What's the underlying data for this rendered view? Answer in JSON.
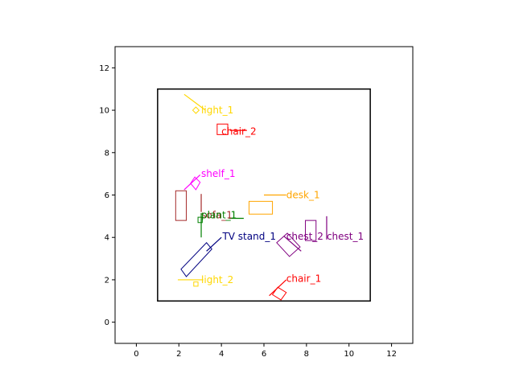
{
  "chart_data": {
    "type": "scatter",
    "title": "",
    "xlabel": "",
    "ylabel": "",
    "xlim": [
      -1,
      13
    ],
    "ylim": [
      -1,
      13
    ],
    "x_ticks": [
      0,
      2,
      4,
      6,
      8,
      10,
      12
    ],
    "y_ticks": [
      0,
      2,
      4,
      6,
      8,
      10,
      12
    ],
    "x_tick_labels": [
      "0",
      "2",
      "4",
      "6",
      "8",
      "10",
      "12"
    ],
    "y_tick_labels": [
      "0",
      "2",
      "4",
      "6",
      "8",
      "10",
      "12"
    ],
    "grid": false,
    "room": {
      "x": [
        1,
        11
      ],
      "y": [
        1,
        11
      ],
      "color": "#000000"
    },
    "objects": [
      {
        "name": "light_1",
        "color": "#FFD700",
        "box": [
          [
            2.65,
            10.0
          ],
          [
            2.8,
            9.85
          ],
          [
            2.95,
            10.0
          ],
          [
            2.8,
            10.15
          ]
        ],
        "dir": [
          [
            3.25,
            10.0
          ],
          [
            2.25,
            10.75
          ]
        ],
        "label_at": [
          3.05,
          10.0
        ]
      },
      {
        "name": "chair_2",
        "color": "#FF0000",
        "box": [
          [
            3.8,
            8.85
          ],
          [
            4.3,
            8.85
          ],
          [
            4.3,
            9.35
          ],
          [
            3.8,
            9.35
          ]
        ],
        "dir": [
          [
            4.4,
            9.05
          ],
          [
            5.2,
            9.05
          ]
        ],
        "label_at": [
          4.0,
          9.0
        ]
      },
      {
        "name": "shelf_1",
        "color": "#FF00FF",
        "box": [
          [
            2.55,
            6.55
          ],
          [
            2.8,
            6.25
          ],
          [
            3.0,
            6.6
          ],
          [
            2.75,
            6.85
          ]
        ],
        "dir": [
          [
            2.25,
            6.25
          ],
          [
            3.0,
            6.95
          ]
        ],
        "label_at": [
          3.05,
          7.0
        ]
      },
      {
        "name": "desk_1",
        "color": "#FFA500",
        "box": [
          [
            5.3,
            5.1
          ],
          [
            6.4,
            5.1
          ],
          [
            6.4,
            5.7
          ],
          [
            5.3,
            5.7
          ]
        ],
        "dir": [
          [
            6.0,
            6.0
          ],
          [
            7.05,
            6.0
          ]
        ],
        "label_at": [
          7.05,
          6.0
        ]
      },
      {
        "name": "sofa_1",
        "color": "#A52A2A",
        "box": [
          [
            1.85,
            4.8
          ],
          [
            2.35,
            4.8
          ],
          [
            2.35,
            6.2
          ],
          [
            1.85,
            6.2
          ]
        ],
        "dir": [
          [
            3.05,
            5.2
          ],
          [
            3.05,
            6.05
          ]
        ],
        "label_at": [
          3.05,
          5.05
        ]
      },
      {
        "name": "plant_1",
        "color": "#008000",
        "box": [
          [
            2.9,
            4.7
          ],
          [
            3.1,
            4.7
          ],
          [
            3.1,
            4.95
          ],
          [
            2.9,
            4.95
          ]
        ],
        "dir": [
          [
            4.35,
            4.9
          ],
          [
            5.05,
            4.9
          ]
        ],
        "label_at": [
          3.05,
          5.05
        ]
      },
      {
        "name": "plant_1_stem",
        "color": "#008000",
        "label": false,
        "box": [],
        "dir": [
          [
            3.05,
            4.0
          ],
          [
            3.05,
            5.15
          ]
        ]
      },
      {
        "name": "TV stand_1",
        "color": "#000080",
        "box": [
          [
            2.1,
            2.5
          ],
          [
            2.35,
            2.15
          ],
          [
            3.55,
            3.45
          ],
          [
            3.3,
            3.75
          ]
        ],
        "dir": [
          [
            3.3,
            3.35
          ],
          [
            4.0,
            4.0
          ]
        ],
        "label_at": [
          4.05,
          4.05
        ]
      },
      {
        "name": "chest_1",
        "color": "#800080",
        "box": [
          [
            7.95,
            3.85
          ],
          [
            8.45,
            3.85
          ],
          [
            8.45,
            4.8
          ],
          [
            7.95,
            4.8
          ]
        ],
        "dir": [
          [
            8.95,
            3.9
          ],
          [
            8.95,
            5.0
          ]
        ],
        "label_at": [
          8.95,
          4.05
        ]
      },
      {
        "name": "chest_2",
        "color": "#800080",
        "box": [
          [
            6.6,
            3.75
          ],
          [
            7.1,
            4.2
          ],
          [
            7.7,
            3.55
          ],
          [
            7.2,
            3.1
          ]
        ],
        "dir": [
          [
            6.95,
            4.05
          ],
          [
            7.75,
            3.35
          ]
        ],
        "label_at": [
          7.05,
          4.05
        ]
      },
      {
        "name": "light_2",
        "color": "#FFD700",
        "box": [
          [
            2.7,
            1.7
          ],
          [
            2.9,
            1.7
          ],
          [
            2.9,
            1.9
          ],
          [
            2.7,
            1.9
          ]
        ],
        "dir": [
          [
            1.95,
            2.0
          ],
          [
            3.15,
            2.0
          ]
        ],
        "label_at": [
          3.05,
          2.0
        ]
      },
      {
        "name": "chair_1",
        "color": "#FF0000",
        "box": [
          [
            6.4,
            1.3
          ],
          [
            6.8,
            1.05
          ],
          [
            7.05,
            1.4
          ],
          [
            6.65,
            1.65
          ]
        ],
        "dir": [
          [
            6.25,
            1.25
          ],
          [
            7.05,
            2.0
          ]
        ],
        "label_at": [
          7.05,
          2.05
        ]
      }
    ]
  }
}
